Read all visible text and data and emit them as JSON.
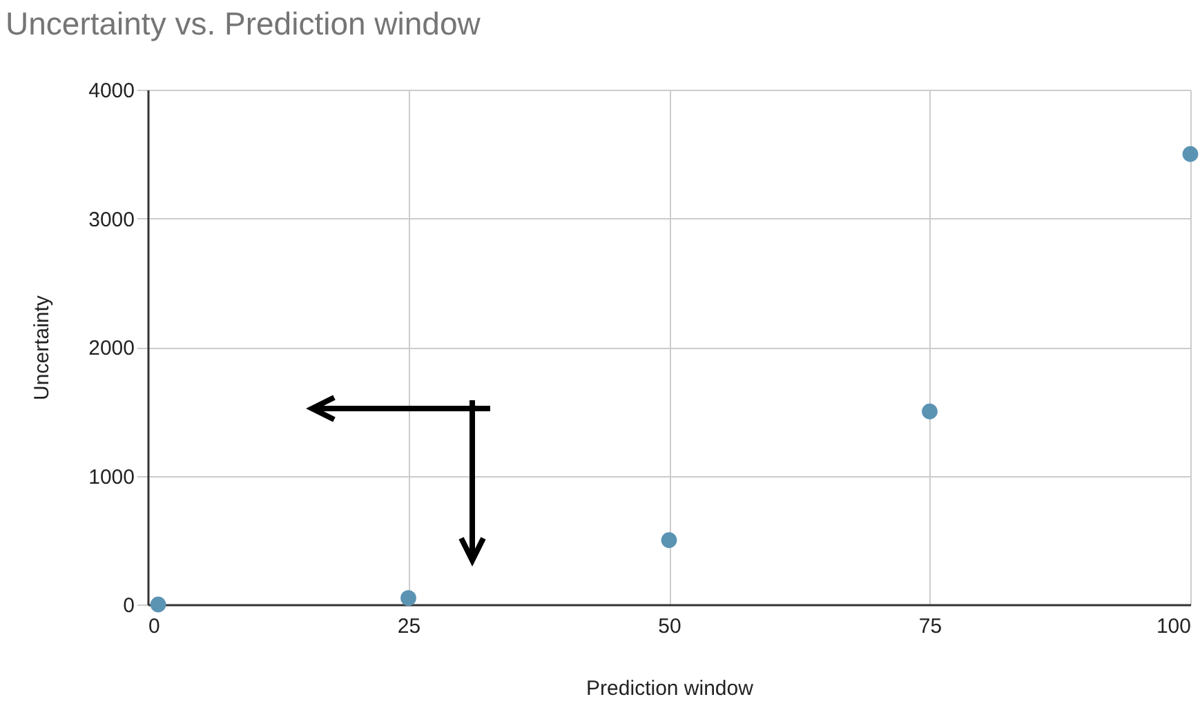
{
  "chart_data": {
    "type": "scatter",
    "title": "Uncertainty  vs. Prediction window",
    "xlabel": "Prediction window",
    "ylabel": "Uncertainty",
    "x": [
      1,
      25,
      50,
      75,
      100
    ],
    "series": [
      {
        "color": "#5b93b3",
        "values": [
          0,
          50,
          500,
          1500,
          3500
        ]
      }
    ],
    "xlim": [
      0,
      100
    ],
    "xticks": [
      0,
      25,
      50,
      75,
      100
    ],
    "ylim": [
      0,
      4000
    ],
    "yticks": [
      0,
      1000,
      2000,
      3000,
      4000
    ],
    "grid": true,
    "marker": "circle"
  }
}
